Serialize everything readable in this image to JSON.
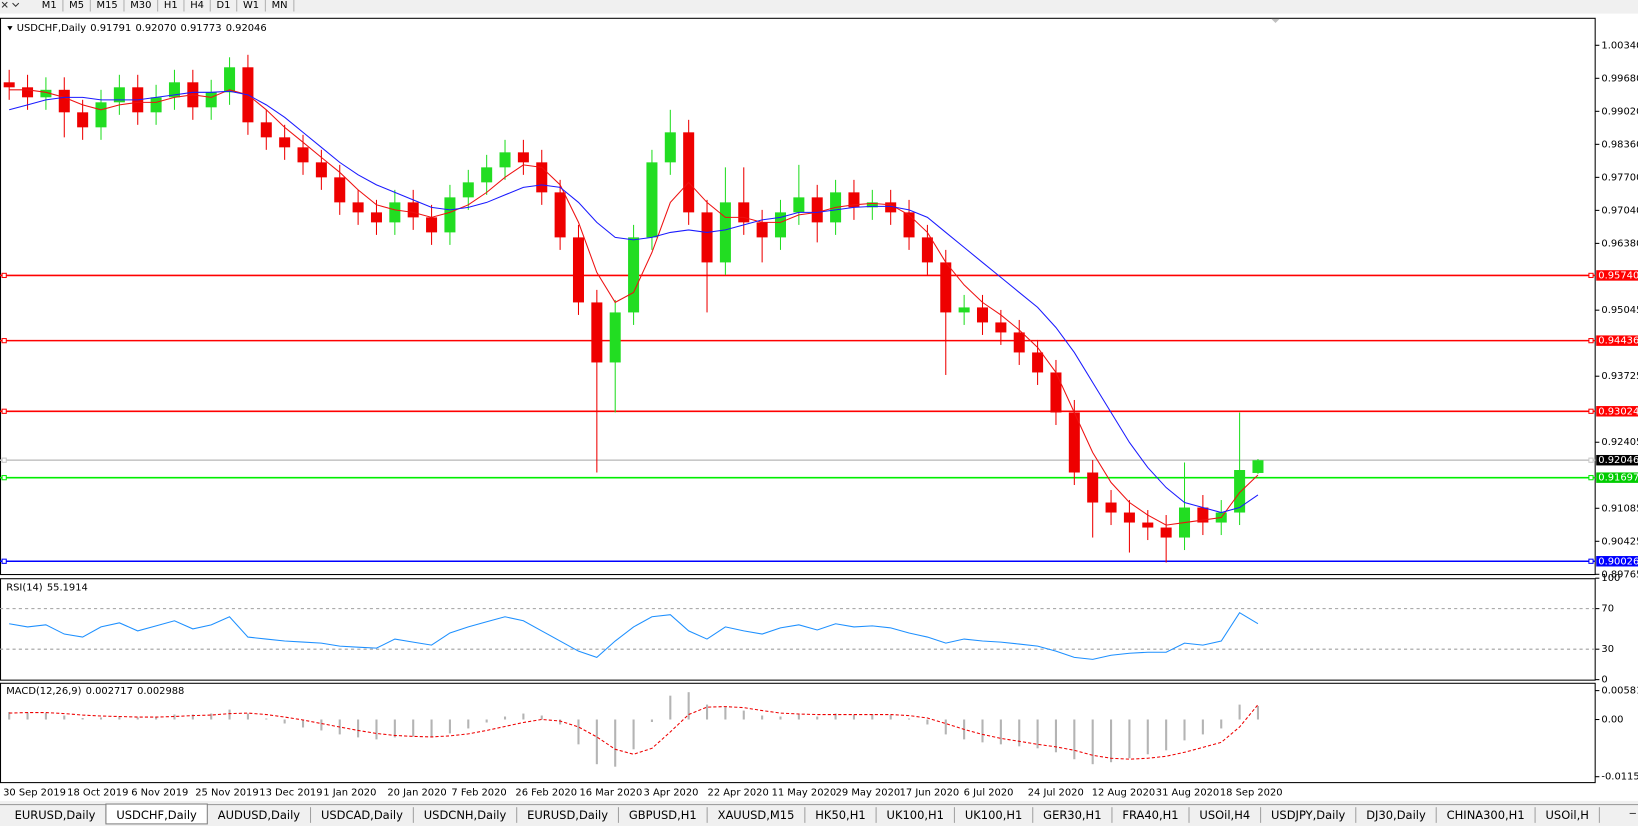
{
  "toolbar": {
    "buttons": [
      "M1",
      "M5",
      "M15",
      "M30",
      "H1",
      "H4",
      "D1",
      "W1",
      "MN"
    ]
  },
  "tabs": {
    "items": [
      "EURUSD,Daily",
      "USDCHF,Daily",
      "AUDUSD,Daily",
      "USDCAD,Daily",
      "USDCNH,Daily",
      "EURUSD,Daily",
      "GBPUSD,H1",
      "XAUUSD,M15",
      "HK50,H1",
      "UK100,H1",
      "UK100,H1",
      "GER30,H1",
      "FRA40,H1",
      "USOil,H4",
      "USDJPY,Daily",
      "DJ30,Daily",
      "CHINA300,H1",
      "USOil,H"
    ],
    "active": 1
  },
  "chart_data": [
    {
      "type": "candlestick",
      "title": "USDCHF,Daily",
      "last_high_label": "0.92070",
      "x_labels": [
        "30 Sep 2019",
        "18 Oct 2019",
        "6 Nov 2019",
        "25 Nov 2019",
        "13 Dec 2019",
        "1 Jan 2020",
        "20 Jan 2020",
        "7 Feb 2020",
        "26 Feb 2020",
        "16 Mar 2020",
        "3 Apr 2020",
        "22 Apr 2020",
        "11 May 2020",
        "29 May 2020",
        "17 Jun 2020",
        "6 Jul 2020",
        "24 Jul 2020",
        "12 Aug 2020",
        "31 Aug 2020",
        "18 Sep 2020"
      ],
      "open": [
        0.996,
        0.995,
        0.993,
        0.9945,
        0.99,
        0.987,
        0.992,
        0.995,
        0.99,
        0.993,
        0.996,
        0.991,
        0.994,
        0.999,
        0.988,
        0.985,
        0.983,
        0.98,
        0.977,
        0.972,
        0.97,
        0.968,
        0.972,
        0.969,
        0.966,
        0.973,
        0.976,
        0.979,
        0.982,
        0.98,
        0.974,
        0.965,
        0.952,
        0.94,
        0.95,
        0.965,
        0.98,
        0.986,
        0.97,
        0.96,
        0.972,
        0.968,
        0.965,
        0.97,
        0.973,
        0.968,
        0.974,
        0.971,
        0.972,
        0.97,
        0.965,
        0.96,
        0.95,
        0.951,
        0.948,
        0.946,
        0.942,
        0.938,
        0.93,
        0.918,
        0.912,
        0.91,
        0.908,
        0.907,
        0.905,
        0.911,
        0.908,
        0.91,
        0.91791
      ],
      "high": [
        0.9985,
        0.9975,
        0.997,
        0.997,
        0.9925,
        0.9945,
        0.9975,
        0.9975,
        0.9955,
        0.9985,
        0.9985,
        0.9965,
        1.001,
        1.0015,
        0.9905,
        0.9875,
        0.9855,
        0.9825,
        0.9795,
        0.9745,
        0.9725,
        0.9745,
        0.9745,
        0.9715,
        0.9755,
        0.9785,
        0.9815,
        0.9845,
        0.9845,
        0.9825,
        0.9765,
        0.9675,
        0.9545,
        0.9525,
        0.9675,
        0.9825,
        0.9905,
        0.9885,
        0.9725,
        0.979,
        0.979,
        0.9705,
        0.9725,
        0.9795,
        0.9755,
        0.9765,
        0.9765,
        0.9745,
        0.9745,
        0.9725,
        0.9675,
        0.9625,
        0.9535,
        0.9535,
        0.9505,
        0.9485,
        0.9445,
        0.9405,
        0.9325,
        0.9205,
        0.9145,
        0.9125,
        0.9105,
        0.9095,
        0.92,
        0.9135,
        0.9125,
        0.93,
        0.9207
      ],
      "low": [
        0.9925,
        0.9905,
        0.9905,
        0.985,
        0.9845,
        0.9845,
        0.9895,
        0.9875,
        0.9875,
        0.9905,
        0.9885,
        0.9885,
        0.9915,
        0.9855,
        0.9825,
        0.9805,
        0.9775,
        0.9745,
        0.9695,
        0.9675,
        0.9655,
        0.9655,
        0.9665,
        0.9635,
        0.9635,
        0.9705,
        0.9735,
        0.9765,
        0.9775,
        0.9715,
        0.9625,
        0.9495,
        0.918,
        0.93,
        0.9475,
        0.9625,
        0.9775,
        0.9675,
        0.95,
        0.9575,
        0.9655,
        0.96,
        0.9625,
        0.9675,
        0.964,
        0.9655,
        0.9685,
        0.9685,
        0.9675,
        0.9625,
        0.9575,
        0.9375,
        0.9475,
        0.9455,
        0.9435,
        0.9395,
        0.9355,
        0.9275,
        0.9155,
        0.905,
        0.9075,
        0.902,
        0.9045,
        0.9,
        0.9025,
        0.9055,
        0.9055,
        0.9075,
        0.91773
      ],
      "close": [
        0.995,
        0.993,
        0.9945,
        0.99,
        0.987,
        0.992,
        0.995,
        0.99,
        0.993,
        0.996,
        0.991,
        0.994,
        0.999,
        0.988,
        0.985,
        0.983,
        0.98,
        0.977,
        0.972,
        0.97,
        0.968,
        0.972,
        0.969,
        0.966,
        0.973,
        0.976,
        0.979,
        0.982,
        0.98,
        0.974,
        0.965,
        0.952,
        0.94,
        0.95,
        0.965,
        0.98,
        0.986,
        0.97,
        0.96,
        0.972,
        0.968,
        0.965,
        0.97,
        0.973,
        0.968,
        0.974,
        0.971,
        0.972,
        0.97,
        0.965,
        0.96,
        0.95,
        0.951,
        0.948,
        0.946,
        0.942,
        0.938,
        0.93,
        0.918,
        0.912,
        0.91,
        0.908,
        0.907,
        0.905,
        0.911,
        0.908,
        0.91,
        0.9185,
        0.92046
      ],
      "up_color": "#22dd22",
      "down_color": "#ee0000",
      "lines": [
        {
          "color": "#ee1111",
          "values": [
            0.9945,
            0.9945,
            0.994,
            0.993,
            0.9915,
            0.9905,
            0.9915,
            0.992,
            0.992,
            0.993,
            0.9935,
            0.993,
            0.9945,
            0.9935,
            0.9905,
            0.987,
            0.984,
            0.981,
            0.978,
            0.9745,
            0.9715,
            0.9705,
            0.97,
            0.969,
            0.97,
            0.9715,
            0.974,
            0.977,
            0.9795,
            0.979,
            0.9755,
            0.968,
            0.958,
            0.952,
            0.954,
            0.962,
            0.972,
            0.976,
            0.972,
            0.969,
            0.969,
            0.968,
            0.968,
            0.9695,
            0.97,
            0.971,
            0.9715,
            0.9718,
            0.9715,
            0.9695,
            0.966,
            0.96,
            0.9555,
            0.952,
            0.9495,
            0.9465,
            0.943,
            0.938,
            0.93,
            0.922,
            0.916,
            0.912,
            0.9095,
            0.9075,
            0.908,
            0.9085,
            0.909,
            0.914,
            0.9175
          ]
        },
        {
          "color": "#1a1aff",
          "values": [
            0.9905,
            0.9915,
            0.9925,
            0.993,
            0.993,
            0.9925,
            0.9925,
            0.9925,
            0.993,
            0.9935,
            0.994,
            0.994,
            0.9942,
            0.9935,
            0.9915,
            0.989,
            0.986,
            0.983,
            0.98,
            0.9775,
            0.9755,
            0.974,
            0.9725,
            0.971,
            0.9705,
            0.971,
            0.972,
            0.9735,
            0.975,
            0.9755,
            0.975,
            0.972,
            0.968,
            0.965,
            0.9645,
            0.965,
            0.966,
            0.9665,
            0.966,
            0.9665,
            0.9675,
            0.9685,
            0.969,
            0.97,
            0.97,
            0.9705,
            0.971,
            0.9712,
            0.9712,
            0.9705,
            0.969,
            0.966,
            0.963,
            0.96,
            0.957,
            0.954,
            0.951,
            0.947,
            0.942,
            0.936,
            0.93,
            0.924,
            0.919,
            0.915,
            0.912,
            0.911,
            0.91,
            0.911,
            0.9135
          ]
        }
      ],
      "hlines": [
        {
          "value": 0.9574,
          "label": "0.95740",
          "color": "#ff0000",
          "label_color": "#ff0000"
        },
        {
          "value": 0.94436,
          "color": "#ff0000",
          "label_color": "#ff0000"
        },
        {
          "value": 0.93024,
          "color": "#ff0000",
          "label_color": "#ff0000"
        },
        {
          "value": 0.92046,
          "color": "#c8c8c8",
          "label_color": "#000000"
        },
        {
          "value": 0.91697,
          "color": "#00ee00",
          "label_color": "#00cc00"
        },
        {
          "value": 0.90026,
          "color": "#0000ff",
          "label_color": "#0000ff"
        }
      ],
      "ylim": [
        0.8975,
        1.0089
      ],
      "yticks": [
        {
          "value": 1.0034,
          "label": "1.00340"
        },
        {
          "value": 0.9968,
          "label": "0.99680"
        },
        {
          "value": 0.9902,
          "label": "0.99020"
        },
        {
          "value": 0.9836,
          "label": "0.98360"
        },
        {
          "value": 0.977,
          "label": "0.97700"
        },
        {
          "value": 0.9704,
          "label": "0.97040"
        },
        {
          "value": 0.9638,
          "label": "0.96380"
        },
        0.95045,
        0.93725,
        0.92405,
        0.91085,
        0.90425,
        0.89765
      ]
    },
    {
      "type": "line",
      "title": "RSI(14)",
      "color": "#1e90ff",
      "values": [
        55,
        52,
        54,
        45,
        42,
        52,
        56,
        48,
        53,
        58,
        50,
        54,
        62,
        42,
        40,
        38,
        37,
        36,
        33,
        32,
        31,
        40,
        37,
        34,
        46,
        52,
        57,
        62,
        58,
        48,
        38,
        28,
        22,
        38,
        52,
        62,
        64,
        48,
        40,
        52,
        48,
        45,
        51,
        54,
        49,
        55,
        52,
        53,
        51,
        46,
        42,
        36,
        40,
        38,
        37,
        35,
        33,
        28,
        22,
        20,
        24,
        26,
        27,
        27,
        36,
        34,
        38,
        66,
        55.1914
      ],
      "levels": [
        70,
        30
      ],
      "ylim": [
        0,
        100
      ],
      "yticks": [
        100,
        70,
        30,
        0
      ]
    },
    {
      "type": "macd",
      "title": "MACD(12,26,9)",
      "histogram": {
        "color": "#b4b4b4",
        "values": [
          0.0015,
          0.0014,
          0.0013,
          0.0008,
          0.0003,
          0.0004,
          0.0006,
          0.0004,
          0.0005,
          0.001,
          0.001,
          0.0012,
          0.002,
          0.0012,
          0.0002,
          -0.0008,
          -0.0016,
          -0.0022,
          -0.003,
          -0.0036,
          -0.004,
          -0.0036,
          -0.0034,
          -0.0036,
          -0.0028,
          -0.0018,
          -0.0006,
          0.0006,
          0.0012,
          0.0008,
          -0.001,
          -0.005,
          -0.009,
          -0.0095,
          -0.006,
          -0.0005,
          0.0048,
          0.0055,
          0.003,
          0.0025,
          0.0018,
          0.0008,
          0.0006,
          0.001,
          0.0006,
          0.0012,
          0.001,
          0.0011,
          0.0009,
          0.0002,
          -0.001,
          -0.003,
          -0.004,
          -0.0046,
          -0.005,
          -0.0054,
          -0.0058,
          -0.0066,
          -0.008,
          -0.009,
          -0.0086,
          -0.0078,
          -0.007,
          -0.0062,
          -0.0042,
          -0.003,
          -0.0018,
          0.003,
          0.002717
        ]
      },
      "signal": {
        "color": "#ee0000",
        "values": [
          0.0013,
          0.0014,
          0.0014,
          0.0012,
          0.0009,
          0.0007,
          0.0006,
          0.0005,
          0.0005,
          0.0006,
          0.0008,
          0.0009,
          0.0012,
          0.0013,
          0.001,
          0.0005,
          -0.0001,
          -0.0008,
          -0.0015,
          -0.0022,
          -0.0028,
          -0.0032,
          -0.0034,
          -0.0035,
          -0.0033,
          -0.0029,
          -0.0022,
          -0.0014,
          -0.0006,
          0,
          -0.0003,
          -0.0015,
          -0.0035,
          -0.006,
          -0.007,
          -0.0058,
          -0.0025,
          0.001,
          0.0025,
          0.0026,
          0.0024,
          0.0018,
          0.0013,
          0.0011,
          0.001,
          0.001,
          0.001,
          0.001,
          0.001,
          0.0008,
          0.0003,
          -0.0008,
          -0.002,
          -0.003,
          -0.0038,
          -0.0044,
          -0.005,
          -0.0055,
          -0.0062,
          -0.0072,
          -0.0078,
          -0.008,
          -0.0078,
          -0.0074,
          -0.0066,
          -0.0056,
          -0.0046,
          -0.0015,
          0.002988
        ]
      },
      "ylim": [
        -0.0126,
        0.0074
      ],
      "yticks": [
        0.005818,
        {
          "value": 0,
          "label": "0.00"
        },
        -0.011514
      ]
    }
  ]
}
